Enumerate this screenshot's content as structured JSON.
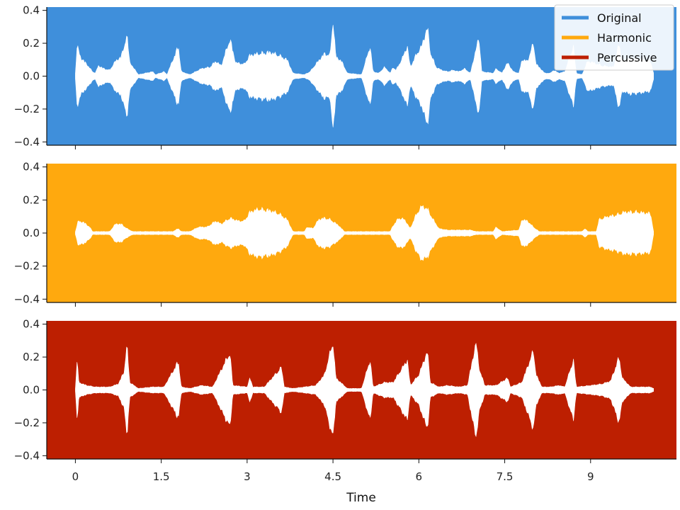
{
  "chart_data": {
    "type": "area",
    "xlabel": "Time",
    "x_ticks": [
      0,
      1.5,
      3,
      4.5,
      6,
      7.5,
      9
    ],
    "x_tick_labels": [
      "0",
      "1.5",
      "3",
      "4.5",
      "6",
      "7.5",
      "9"
    ],
    "xlim": [
      -0.5,
      10.5
    ],
    "ylim": [
      -0.42,
      0.42
    ],
    "y_ticks": [
      0.4,
      0.2,
      0.0,
      -0.2,
      -0.4
    ],
    "y_tick_labels": [
      "0.4",
      "0.2",
      "0.0",
      "−0.2",
      "−0.4"
    ],
    "waveform_color": "#ffffff",
    "legend": {
      "placement": "top-right",
      "entries": [
        {
          "label": "Original",
          "color": "#3f8fdb"
        },
        {
          "label": "Harmonic",
          "color": "#ffa90e"
        },
        {
          "label": "Percussive",
          "color": "#bd1f01"
        }
      ]
    },
    "panels": [
      {
        "name": "Original",
        "background": "#3f8fdb",
        "envelope": [
          [
            0.0,
            0.02
          ],
          [
            0.03,
            0.2
          ],
          [
            0.1,
            0.12
          ],
          [
            0.2,
            0.08
          ],
          [
            0.3,
            0.03
          ],
          [
            0.35,
            0.02
          ],
          [
            0.4,
            0.07
          ],
          [
            0.5,
            0.05
          ],
          [
            0.6,
            0.04
          ],
          [
            0.7,
            0.1
          ],
          [
            0.8,
            0.13
          ],
          [
            0.9,
            0.27
          ],
          [
            0.95,
            0.1
          ],
          [
            1.0,
            0.06
          ],
          [
            1.05,
            0.04
          ],
          [
            1.1,
            0.01
          ],
          [
            1.35,
            0.03
          ],
          [
            1.4,
            0.01
          ],
          [
            1.55,
            0.03
          ],
          [
            1.6,
            0.01
          ],
          [
            1.8,
            0.2
          ],
          [
            1.85,
            0.03
          ],
          [
            2.0,
            0.01
          ],
          [
            2.2,
            0.05
          ],
          [
            2.35,
            0.06
          ],
          [
            2.45,
            0.1
          ],
          [
            2.55,
            0.07
          ],
          [
            2.7,
            0.25
          ],
          [
            2.8,
            0.09
          ],
          [
            2.95,
            0.08
          ],
          [
            3.05,
            0.14
          ],
          [
            3.2,
            0.15
          ],
          [
            3.4,
            0.16
          ],
          [
            3.55,
            0.14
          ],
          [
            3.7,
            0.11
          ],
          [
            3.8,
            0.02
          ],
          [
            4.0,
            0.01
          ],
          [
            4.1,
            0.03
          ],
          [
            4.2,
            0.08
          ],
          [
            4.35,
            0.15
          ],
          [
            4.45,
            0.14
          ],
          [
            4.5,
            0.38
          ],
          [
            4.55,
            0.13
          ],
          [
            4.65,
            0.1
          ],
          [
            4.75,
            0.02
          ],
          [
            5.0,
            0.01
          ],
          [
            5.15,
            0.2
          ],
          [
            5.2,
            0.03
          ],
          [
            5.3,
            0.02
          ],
          [
            5.4,
            0.06
          ],
          [
            5.5,
            0.02
          ],
          [
            5.55,
            0.06
          ],
          [
            5.6,
            0.04
          ],
          [
            5.7,
            0.11
          ],
          [
            5.8,
            0.2
          ],
          [
            5.85,
            0.06
          ],
          [
            5.95,
            0.14
          ],
          [
            6.05,
            0.2
          ],
          [
            6.15,
            0.33
          ],
          [
            6.2,
            0.16
          ],
          [
            6.3,
            0.06
          ],
          [
            6.4,
            0.04
          ],
          [
            6.5,
            0.03
          ],
          [
            6.6,
            0.04
          ],
          [
            6.7,
            0.03
          ],
          [
            6.8,
            0.05
          ],
          [
            6.9,
            0.02
          ],
          [
            7.05,
            0.26
          ],
          [
            7.1,
            0.03
          ],
          [
            7.3,
            0.02
          ],
          [
            7.35,
            0.05
          ],
          [
            7.45,
            0.02
          ],
          [
            7.55,
            0.09
          ],
          [
            7.65,
            0.03
          ],
          [
            7.75,
            0.02
          ],
          [
            7.8,
            0.11
          ],
          [
            7.9,
            0.1
          ],
          [
            8.0,
            0.22
          ],
          [
            8.05,
            0.08
          ],
          [
            8.2,
            0.02
          ],
          [
            8.3,
            0.02
          ],
          [
            8.35,
            0.04
          ],
          [
            8.45,
            0.02
          ],
          [
            8.55,
            0.03
          ],
          [
            8.7,
            0.2
          ],
          [
            8.75,
            0.02
          ],
          [
            8.85,
            0.01
          ],
          [
            8.95,
            0.1
          ],
          [
            9.05,
            0.09
          ],
          [
            9.2,
            0.07
          ],
          [
            9.4,
            0.06
          ],
          [
            9.5,
            0.22
          ],
          [
            9.55,
            0.1
          ],
          [
            9.7,
            0.12
          ],
          [
            9.9,
            0.11
          ],
          [
            10.05,
            0.1
          ],
          [
            10.1,
            0.02
          ]
        ]
      },
      {
        "name": "Harmonic",
        "background": "#ffa90e",
        "envelope": [
          [
            0.0,
            0.01
          ],
          [
            0.05,
            0.08
          ],
          [
            0.15,
            0.07
          ],
          [
            0.25,
            0.04
          ],
          [
            0.3,
            0.01
          ],
          [
            0.6,
            0.01
          ],
          [
            0.7,
            0.06
          ],
          [
            0.8,
            0.06
          ],
          [
            0.9,
            0.03
          ],
          [
            1.0,
            0.01
          ],
          [
            1.7,
            0.01
          ],
          [
            1.8,
            0.03
          ],
          [
            1.85,
            0.01
          ],
          [
            2.0,
            0.01
          ],
          [
            2.15,
            0.04
          ],
          [
            2.3,
            0.04
          ],
          [
            2.45,
            0.08
          ],
          [
            2.55,
            0.06
          ],
          [
            2.7,
            0.1
          ],
          [
            2.85,
            0.08
          ],
          [
            2.95,
            0.08
          ],
          [
            3.05,
            0.14
          ],
          [
            3.2,
            0.16
          ],
          [
            3.4,
            0.15
          ],
          [
            3.55,
            0.13
          ],
          [
            3.7,
            0.09
          ],
          [
            3.8,
            0.01
          ],
          [
            4.0,
            0.01
          ],
          [
            4.05,
            0.04
          ],
          [
            4.15,
            0.03
          ],
          [
            4.25,
            0.09
          ],
          [
            4.35,
            0.1
          ],
          [
            4.45,
            0.09
          ],
          [
            4.6,
            0.05
          ],
          [
            4.7,
            0.01
          ],
          [
            5.5,
            0.01
          ],
          [
            5.55,
            0.05
          ],
          [
            5.65,
            0.1
          ],
          [
            5.75,
            0.09
          ],
          [
            5.85,
            0.03
          ],
          [
            5.95,
            0.12
          ],
          [
            6.05,
            0.18
          ],
          [
            6.15,
            0.16
          ],
          [
            6.25,
            0.09
          ],
          [
            6.35,
            0.03
          ],
          [
            6.5,
            0.02
          ],
          [
            6.9,
            0.02
          ],
          [
            7.0,
            0.01
          ],
          [
            7.3,
            0.01
          ],
          [
            7.35,
            0.04
          ],
          [
            7.45,
            0.01
          ],
          [
            7.75,
            0.02
          ],
          [
            7.8,
            0.09
          ],
          [
            7.9,
            0.08
          ],
          [
            8.0,
            0.04
          ],
          [
            8.1,
            0.01
          ],
          [
            8.85,
            0.01
          ],
          [
            8.9,
            0.03
          ],
          [
            8.95,
            0.01
          ],
          [
            9.1,
            0.01
          ],
          [
            9.15,
            0.09
          ],
          [
            9.3,
            0.11
          ],
          [
            9.45,
            0.12
          ],
          [
            9.6,
            0.14
          ],
          [
            9.8,
            0.14
          ],
          [
            10.05,
            0.13
          ],
          [
            10.1,
            0.01
          ]
        ]
      },
      {
        "name": "Percussive",
        "background": "#bd1f01",
        "envelope": [
          [
            0.0,
            0.01
          ],
          [
            0.03,
            0.2
          ],
          [
            0.06,
            0.05
          ],
          [
            0.2,
            0.03
          ],
          [
            0.35,
            0.02
          ],
          [
            0.5,
            0.02
          ],
          [
            0.6,
            0.02
          ],
          [
            0.75,
            0.04
          ],
          [
            0.85,
            0.12
          ],
          [
            0.9,
            0.3
          ],
          [
            0.95,
            0.05
          ],
          [
            1.1,
            0.01
          ],
          [
            1.35,
            0.02
          ],
          [
            1.55,
            0.02
          ],
          [
            1.8,
            0.19
          ],
          [
            1.85,
            0.02
          ],
          [
            2.0,
            0.01
          ],
          [
            2.2,
            0.03
          ],
          [
            2.4,
            0.02
          ],
          [
            2.7,
            0.25
          ],
          [
            2.75,
            0.03
          ],
          [
            3.0,
            0.02
          ],
          [
            3.05,
            0.08
          ],
          [
            3.1,
            0.02
          ],
          [
            3.3,
            0.02
          ],
          [
            3.6,
            0.15
          ],
          [
            3.65,
            0.02
          ],
          [
            3.8,
            0.01
          ],
          [
            4.0,
            0.02
          ],
          [
            4.2,
            0.03
          ],
          [
            4.35,
            0.1
          ],
          [
            4.5,
            0.32
          ],
          [
            4.55,
            0.08
          ],
          [
            4.75,
            0.01
          ],
          [
            5.0,
            0.01
          ],
          [
            5.15,
            0.2
          ],
          [
            5.2,
            0.02
          ],
          [
            5.4,
            0.05
          ],
          [
            5.55,
            0.05
          ],
          [
            5.8,
            0.2
          ],
          [
            5.85,
            0.03
          ],
          [
            6.0,
            0.1
          ],
          [
            6.15,
            0.26
          ],
          [
            6.2,
            0.05
          ],
          [
            6.35,
            0.02
          ],
          [
            6.5,
            0.03
          ],
          [
            6.7,
            0.02
          ],
          [
            6.85,
            0.03
          ],
          [
            7.0,
            0.32
          ],
          [
            7.05,
            0.15
          ],
          [
            7.15,
            0.03
          ],
          [
            7.35,
            0.03
          ],
          [
            7.55,
            0.08
          ],
          [
            7.6,
            0.02
          ],
          [
            7.8,
            0.05
          ],
          [
            8.0,
            0.26
          ],
          [
            8.05,
            0.1
          ],
          [
            8.15,
            0.02
          ],
          [
            8.3,
            0.02
          ],
          [
            8.45,
            0.03
          ],
          [
            8.55,
            0.02
          ],
          [
            8.7,
            0.2
          ],
          [
            8.75,
            0.02
          ],
          [
            9.0,
            0.03
          ],
          [
            9.2,
            0.04
          ],
          [
            9.35,
            0.06
          ],
          [
            9.5,
            0.22
          ],
          [
            9.55,
            0.08
          ],
          [
            9.7,
            0.02
          ],
          [
            9.9,
            0.02
          ],
          [
            10.05,
            0.02
          ],
          [
            10.1,
            0.01
          ]
        ]
      }
    ]
  }
}
